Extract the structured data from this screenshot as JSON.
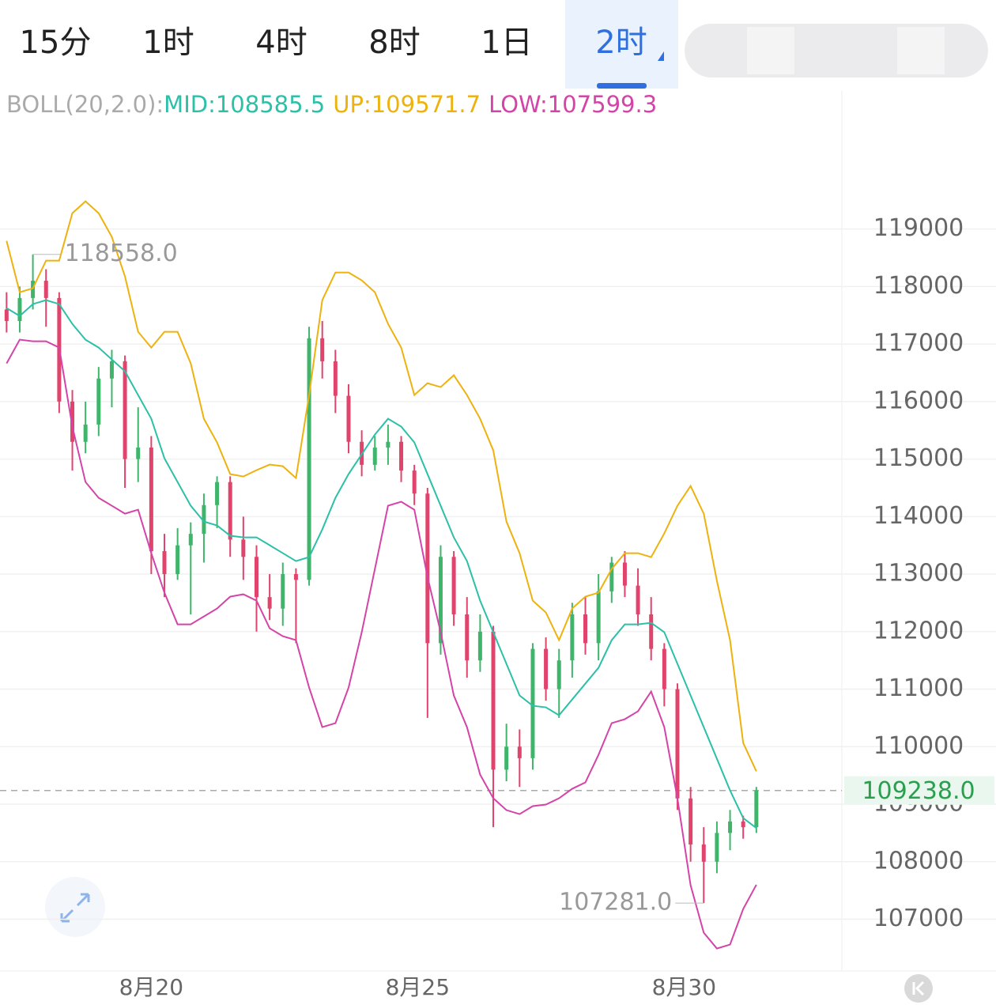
{
  "chart_data": {
    "type": "candlestick",
    "tabs": [
      "15分",
      "1时",
      "4时",
      "8时",
      "1日",
      "2时"
    ],
    "active_tab": 5,
    "indicator": "BOLL(20,2.0):",
    "up_color": "#3fb56b",
    "down_color": "#e0436b",
    "open": [
      117600,
      117400,
      117800,
      118100,
      117800,
      116000,
      115300,
      115600,
      116400,
      116700,
      115000,
      115200,
      113400,
      113000,
      113500,
      113700,
      114200,
      114600,
      113600,
      113300,
      112600,
      112400,
      113000,
      112900,
      117100,
      116700,
      116100,
      115300,
      114900,
      115200,
      115300,
      114800,
      114400,
      111800,
      113300,
      112300,
      111500,
      112000,
      109600,
      110000,
      109800,
      111700,
      111000,
      111500,
      112300,
      111800,
      112700,
      113200,
      112800,
      112300,
      111700,
      111000,
      109100,
      108300,
      108000,
      108500,
      108700,
      108600
    ],
    "high": [
      117900,
      118000,
      118558,
      118300,
      117900,
      116200,
      116000,
      116600,
      116900,
      116800,
      115900,
      115400,
      113700,
      113800,
      113900,
      114400,
      114700,
      114700,
      114000,
      113500,
      113000,
      113200,
      113100,
      117300,
      117400,
      116900,
      116300,
      115500,
      115400,
      115600,
      115400,
      114900,
      114500,
      113500,
      113400,
      112600,
      112300,
      112100,
      110400,
      110300,
      111800,
      111900,
      111700,
      112500,
      112600,
      113000,
      113300,
      113400,
      113100,
      112600,
      111800,
      111100,
      109300,
      108600,
      108700,
      108900,
      108800,
      109300
    ],
    "low": [
      117200,
      117200,
      117600,
      117300,
      115800,
      114800,
      115100,
      115400,
      115900,
      114500,
      114600,
      113000,
      112600,
      112900,
      112300,
      113200,
      113800,
      113300,
      112900,
      112000,
      112200,
      112100,
      111800,
      112800,
      116400,
      115800,
      115100,
      114700,
      114800,
      114900,
      114600,
      114200,
      110500,
      111600,
      112100,
      111200,
      111300,
      108600,
      109400,
      109300,
      109600,
      110800,
      110500,
      111200,
      111600,
      111500,
      112500,
      112600,
      112100,
      111500,
      110700,
      108900,
      108000,
      107281,
      107800,
      108200,
      108400,
      108500
    ],
    "close": [
      117400,
      117800,
      118100,
      117800,
      116000,
      115300,
      115600,
      116400,
      116700,
      115000,
      115200,
      113400,
      113000,
      113500,
      113700,
      114200,
      114600,
      113600,
      113300,
      112600,
      112400,
      113000,
      112900,
      117100,
      116700,
      116100,
      115300,
      114900,
      115200,
      115300,
      114800,
      114400,
      111800,
      113300,
      112300,
      111500,
      112000,
      109600,
      110000,
      109800,
      111700,
      111000,
      111500,
      112300,
      111800,
      112700,
      113200,
      112800,
      112300,
      111700,
      111000,
      109100,
      108300,
      108000,
      108500,
      108700,
      108600,
      109238
    ],
    "series": [
      {
        "name": "MID:108585.5",
        "color": "#2cc0a8",
        "values": [
          117625,
          117488,
          117694,
          117763,
          117694,
          117350,
          117075,
          116938,
          116732,
          116526,
          116113,
          115701,
          115014,
          114601,
          114189,
          113914,
          113845,
          113667,
          113639,
          113639,
          113502,
          113364,
          113227,
          113295,
          113777,
          114326,
          114739,
          115082,
          115426,
          115701,
          115564,
          115289,
          114739,
          114189,
          113639,
          113227,
          112539,
          111990,
          111440,
          110890,
          110711,
          110684,
          110546,
          110821,
          111096,
          111371,
          111852,
          112127,
          112127,
          112154,
          111990,
          111440,
          110890,
          110340,
          109790,
          109240,
          108759,
          108585.5
        ]
      },
      {
        "name": "UP:109571.7",
        "color": "#eeb20e",
        "values": [
          118794,
          117900,
          117969,
          118450,
          118450,
          119275,
          119481,
          119275,
          118863,
          118175,
          117213,
          116938,
          117213,
          117213,
          116663,
          115701,
          115289,
          114739,
          114697,
          114807,
          114904,
          114876,
          114670,
          116113,
          117763,
          118244,
          118244,
          118107,
          117900,
          117350,
          116938,
          116113,
          116319,
          116251,
          116457,
          116113,
          115701,
          115151,
          113914,
          113364,
          112539,
          112333,
          111852,
          112402,
          112608,
          112677,
          113089,
          113364,
          113364,
          113295,
          113708,
          114189,
          114532,
          114051,
          112883,
          111852,
          110065,
          109571.7
        ]
      },
      {
        "name": "LOW:107599.3",
        "color": "#d444a8",
        "values": [
          116663,
          117076,
          117048,
          117048,
          116938,
          115563,
          114601,
          114326,
          114189,
          114051,
          114120,
          113364,
          112677,
          112127,
          112127,
          112264,
          112402,
          112608,
          112649,
          112539,
          112058,
          111921,
          111852,
          111027,
          110340,
          110409,
          111027,
          111990,
          113089,
          114189,
          114258,
          114120,
          112952,
          111990,
          110890,
          110340,
          109515,
          109103,
          108897,
          108828,
          108966,
          108993,
          109103,
          109268,
          109378,
          109859,
          110409,
          110478,
          110615,
          110959,
          110340,
          109103,
          107591,
          106766,
          106491,
          106560,
          107178,
          107599.3
        ]
      }
    ],
    "annotations": [
      "118558.0",
      "107281.0"
    ],
    "last_price": {
      "value": 109238,
      "label": "109238.0"
    },
    "xlim": [
      -0.5,
      63.5
    ],
    "xticks": [
      {
        "value": 11,
        "label": "8月20"
      },
      {
        "value": 31.25,
        "label": "8月25"
      },
      {
        "value": 51.5,
        "label": "8月30"
      }
    ],
    "ylim": [
      106100,
      121400
    ],
    "yticks": [
      107000,
      108000,
      109000,
      110000,
      111000,
      112000,
      113000,
      114000,
      115000,
      116000,
      117000,
      118000,
      119000
    ],
    "grid": true
  }
}
